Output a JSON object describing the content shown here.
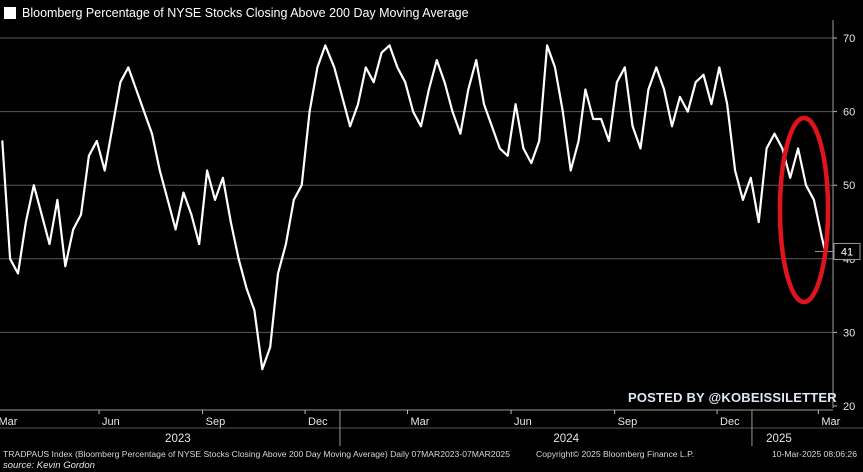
{
  "chart_data": {
    "type": "line",
    "title": "Bloomberg Percentage of NYSE Stocks Closing Above 200 Day Moving Average",
    "series": [
      {
        "name": "Bloomberg Percentage of NYSE Stocks Closing Above 200 Day Moving Average",
        "color": "#ffffff",
        "x": [
          "2023-03-07",
          "2023-03-14",
          "2023-03-21",
          "2023-03-28",
          "2023-04-04",
          "2023-04-11",
          "2023-04-18",
          "2023-04-25",
          "2023-05-02",
          "2023-05-09",
          "2023-05-16",
          "2023-05-23",
          "2023-05-30",
          "2023-06-06",
          "2023-06-13",
          "2023-06-20",
          "2023-06-27",
          "2023-07-04",
          "2023-07-11",
          "2023-07-18",
          "2023-07-25",
          "2023-08-01",
          "2023-08-08",
          "2023-08-15",
          "2023-08-22",
          "2023-08-29",
          "2023-09-05",
          "2023-09-12",
          "2023-09-19",
          "2023-09-26",
          "2023-10-03",
          "2023-10-10",
          "2023-10-17",
          "2023-10-24",
          "2023-10-31",
          "2023-11-07",
          "2023-11-14",
          "2023-11-21",
          "2023-11-28",
          "2023-12-05",
          "2023-12-12",
          "2023-12-19",
          "2023-12-27",
          "2024-01-03",
          "2024-01-10",
          "2024-01-17",
          "2024-01-24",
          "2024-01-31",
          "2024-02-07",
          "2024-02-14",
          "2024-02-21",
          "2024-02-28",
          "2024-03-06",
          "2024-03-13",
          "2024-03-20",
          "2024-03-27",
          "2024-04-03",
          "2024-04-10",
          "2024-04-17",
          "2024-04-24",
          "2024-05-01",
          "2024-05-08",
          "2024-05-15",
          "2024-05-22",
          "2024-05-29",
          "2024-06-05",
          "2024-06-12",
          "2024-06-19",
          "2024-06-26",
          "2024-07-03",
          "2024-07-10",
          "2024-07-17",
          "2024-07-24",
          "2024-07-31",
          "2024-08-06",
          "2024-08-13",
          "2024-08-20",
          "2024-08-27",
          "2024-09-03",
          "2024-09-10",
          "2024-09-17",
          "2024-09-24",
          "2024-10-01",
          "2024-10-08",
          "2024-10-15",
          "2024-10-22",
          "2024-10-29",
          "2024-11-05",
          "2024-11-12",
          "2024-11-19",
          "2024-11-26",
          "2024-12-03",
          "2024-12-10",
          "2024-12-17",
          "2024-12-24",
          "2024-12-31",
          "2025-01-07",
          "2025-01-14",
          "2025-01-21",
          "2025-01-28",
          "2025-02-04",
          "2025-02-11",
          "2025-02-18",
          "2025-02-25",
          "2025-03-04",
          "2025-03-07"
        ],
        "values": [
          56,
          40,
          38,
          45,
          50,
          46,
          42,
          48,
          39,
          44,
          46,
          54,
          56,
          52,
          58,
          64,
          66,
          63,
          60,
          57,
          52,
          48,
          44,
          49,
          46,
          42,
          52,
          48,
          51,
          45,
          40,
          36,
          33,
          25,
          28,
          38,
          42,
          48,
          50,
          60,
          66,
          69,
          66,
          62,
          58,
          61,
          66,
          64,
          68,
          69,
          66,
          64,
          60,
          58,
          63,
          67,
          64,
          60,
          57,
          63,
          67,
          61,
          58,
          55,
          54,
          61,
          55,
          53,
          56,
          69,
          66,
          60,
          52,
          56,
          63,
          59,
          59,
          56,
          64,
          66,
          58,
          55,
          63,
          66,
          63,
          58,
          62,
          60,
          64,
          65,
          61,
          66,
          61,
          52,
          48,
          51,
          45,
          55,
          57,
          55,
          51,
          55,
          50,
          48,
          43,
          41
        ]
      }
    ],
    "y_axis": {
      "side": "right",
      "ylim": [
        20,
        72
      ],
      "ticks": [
        20,
        30,
        40,
        50,
        60,
        70
      ],
      "last_value_label": "41"
    },
    "x_axis": {
      "tick_labels": [
        "Mar",
        "Jun",
        "Sep",
        "Dec",
        "Mar",
        "Jun",
        "Sep",
        "Dec",
        "Mar"
      ],
      "tick_dates": [
        "2023-03-01",
        "2023-06-01",
        "2023-09-01",
        "2023-12-01",
        "2024-03-01",
        "2024-06-01",
        "2024-09-01",
        "2024-12-01",
        "2025-03-01"
      ],
      "year_labels": [
        "2023",
        "2024",
        "2025"
      ],
      "year_label_dates": [
        "2023-08-10",
        "2024-07-20",
        "2025-01-25"
      ],
      "year_dividers": [
        "2024-01-01",
        "2025-01-01"
      ]
    },
    "grid": true,
    "legend": "top-left",
    "annotation": {
      "type": "ellipse",
      "color": "#e0141c"
    }
  },
  "watermark": "POSTED BY @KOBEISSILETTER",
  "footer": {
    "left": "TRADPAUS Index (Bloomberg Percentage of NYSE Stocks Closing Above 200 Day Moving Average)  Daily 07MAR2023-07MAR2025",
    "mid": "Copyright© 2025 Bloomberg Finance L.P.",
    "right": "10-Mar-2025 08:06:26",
    "credit": "source: Kevin Gordon"
  }
}
